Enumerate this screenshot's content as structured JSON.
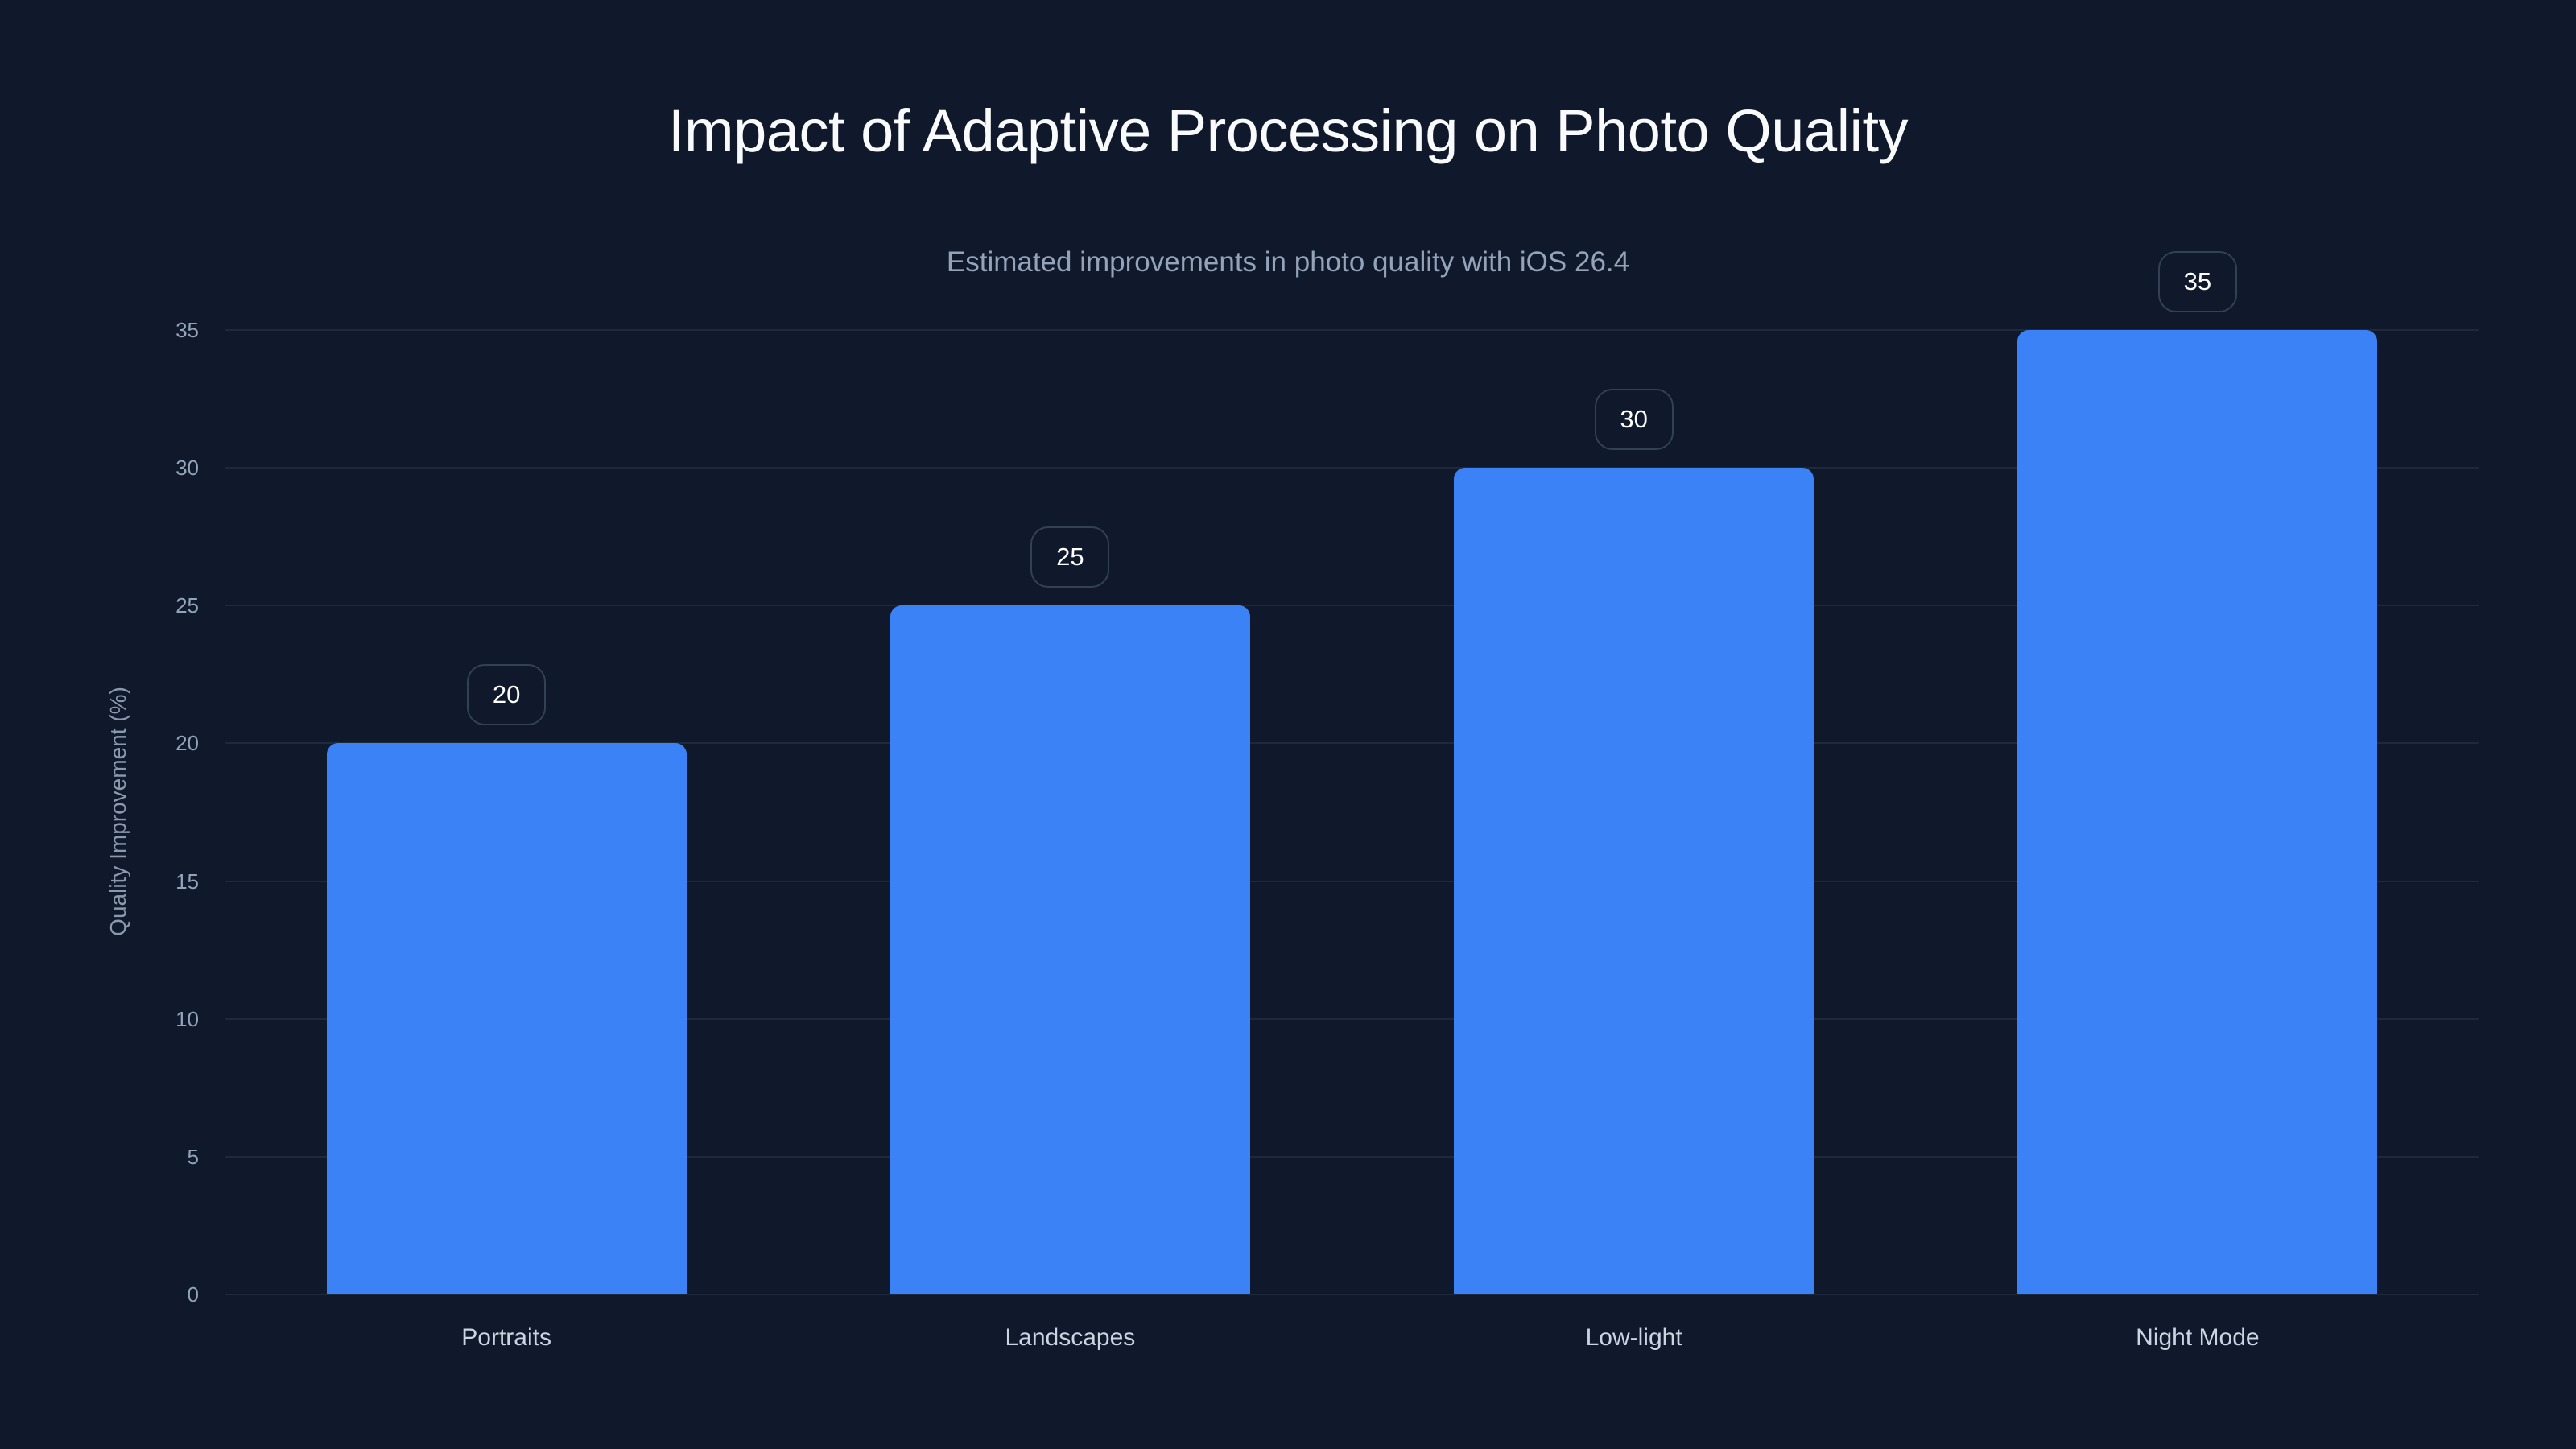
{
  "header": {
    "title": "Impact of Adaptive Processing on Photo Quality",
    "subtitle": "Estimated improvements in photo quality with iOS 26.4"
  },
  "axes": {
    "y_title": "Quality Improvement (%)",
    "y_ticks": [
      "0",
      "5",
      "10",
      "15",
      "20",
      "25",
      "30",
      "35"
    ]
  },
  "bars": [
    {
      "label": "Portraits",
      "value": 20,
      "value_label": "20"
    },
    {
      "label": "Landscapes",
      "value": 25,
      "value_label": "25"
    },
    {
      "label": "Low-light",
      "value": 30,
      "value_label": "30"
    },
    {
      "label": "Night Mode",
      "value": 35,
      "value_label": "35"
    }
  ],
  "colors": {
    "background": "#10182b",
    "bar": "#3b82f6",
    "gridline": "#1e293b",
    "value_box_border": "#334155",
    "title": "#f8fafc",
    "subtitle": "#94a3b8",
    "tick_label": "#94a3b8",
    "x_label": "#cbd5e1"
  },
  "chart_data": {
    "type": "bar",
    "title": "Impact of Adaptive Processing on Photo Quality",
    "subtitle": "Estimated improvements in photo quality with iOS 26.4",
    "categories": [
      "Portraits",
      "Landscapes",
      "Low-light",
      "Night Mode"
    ],
    "values": [
      20,
      25,
      30,
      35
    ],
    "series": [
      {
        "name": "Quality Improvement (%)",
        "values": [
          20,
          25,
          30,
          35
        ]
      }
    ],
    "xlabel": "",
    "ylabel": "Quality Improvement (%)",
    "ylim": [
      0,
      35
    ],
    "yticks": [
      0,
      5,
      10,
      15,
      20,
      25,
      30,
      35
    ],
    "grid": "horizontal",
    "legend": "none",
    "data_labels": true
  }
}
